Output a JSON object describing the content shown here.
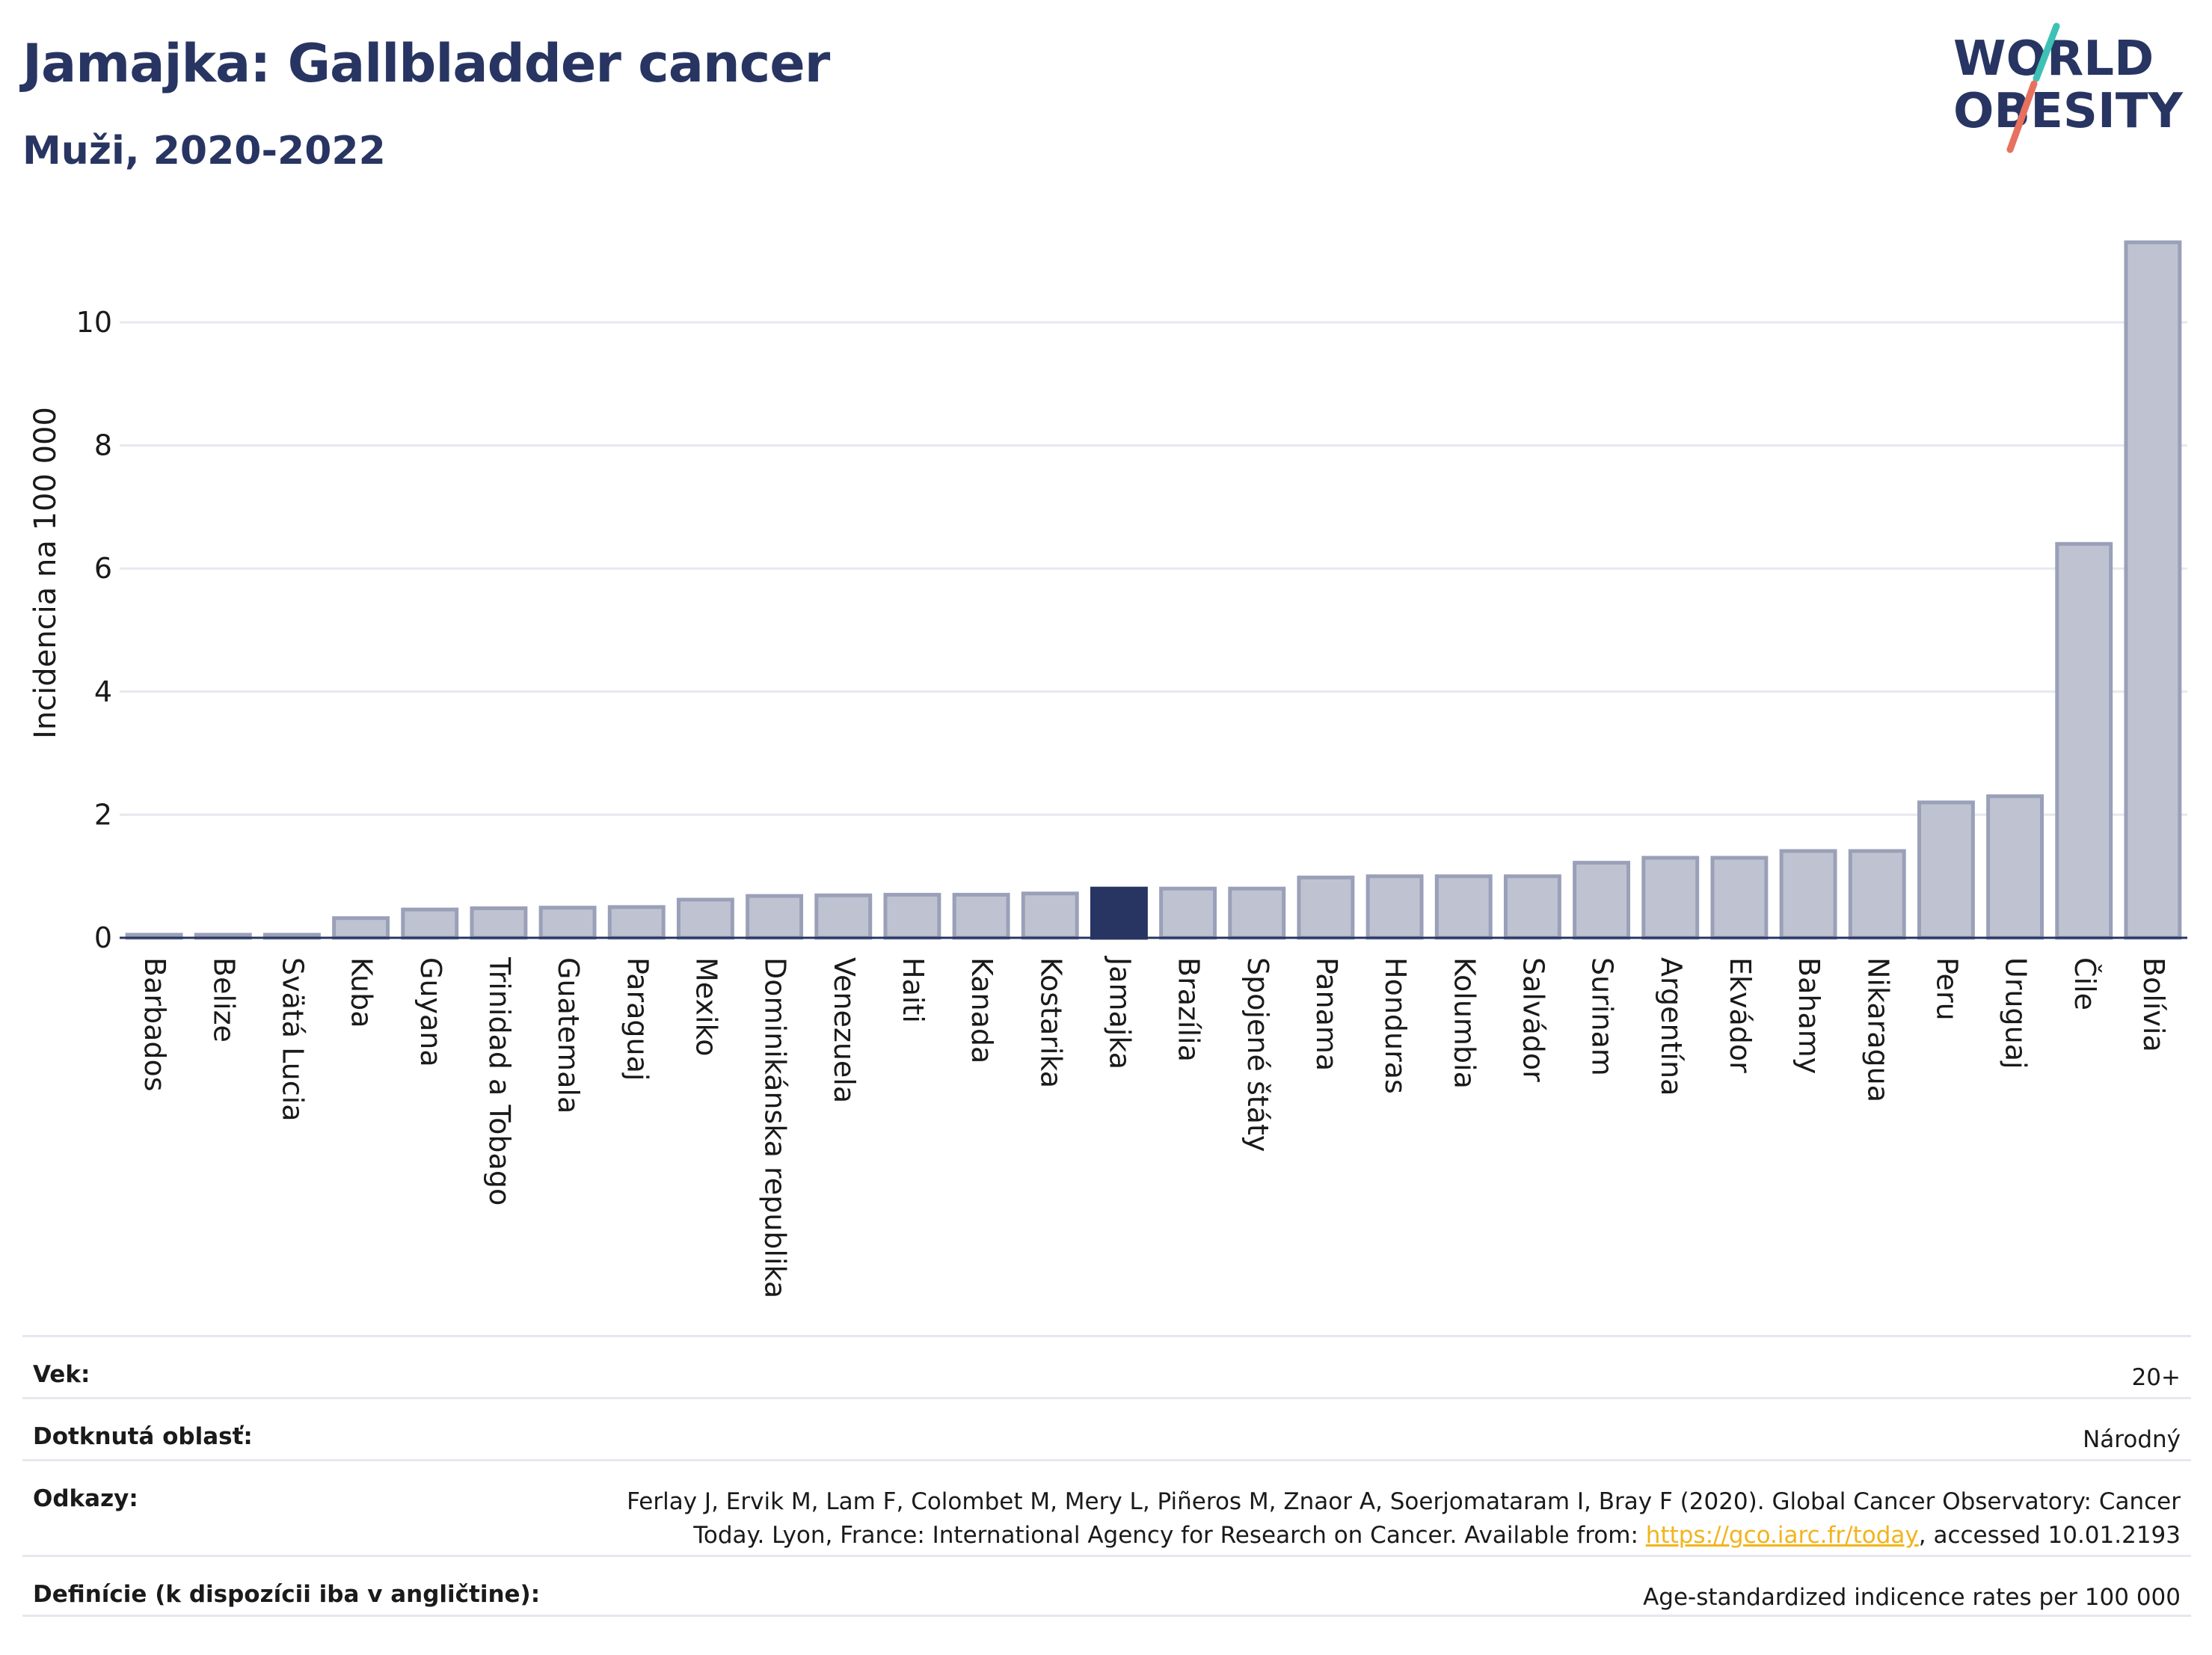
{
  "header": {
    "title": "Jamajka: Gallbladder cancer",
    "subtitle": "Muži, 2020-2022"
  },
  "logo": {
    "line1": "WORLD",
    "line2": "OBESITY",
    "colors": {
      "text": "#283562",
      "slash_top": "#3ec1b5",
      "slash_bottom": "#e8705e"
    }
  },
  "chart_data": {
    "type": "bar",
    "xlabel": "",
    "ylabel": "Incidencia na 100 000",
    "ylim": [
      0,
      11.3
    ],
    "yticks": [
      0,
      2,
      4,
      6,
      8,
      10
    ],
    "grid": true,
    "highlight": "Jamajka",
    "colors": {
      "bar": "#bfc3d1",
      "bar_edge": "#9aa0b8",
      "highlight": "#283562",
      "grid": "#e6e8ef",
      "axis": "#283562"
    },
    "categories": [
      "Barbados",
      "Belize",
      "Svätá Lucia",
      "Kuba",
      "Guyana",
      "Trinidad a Tobago",
      "Guatemala",
      "Paraguaj",
      "Mexiko",
      "Dominikánska republika",
      "Venezuela",
      "Haiti",
      "Kanada",
      "Kostarika",
      "Jamajka",
      "Brazília",
      "Spojené štáty",
      "Panama",
      "Honduras",
      "Kolumbia",
      "Salvádor",
      "Surinam",
      "Argentína",
      "Ekvádor",
      "Bahamy",
      "Nikaragua",
      "Peru",
      "Uruguaj",
      "Čile",
      "Bolívia"
    ],
    "values": [
      0.05,
      0.05,
      0.05,
      0.32,
      0.46,
      0.48,
      0.49,
      0.5,
      0.62,
      0.68,
      0.69,
      0.7,
      0.7,
      0.72,
      0.8,
      0.8,
      0.8,
      0.98,
      1.0,
      1.0,
      1.0,
      1.22,
      1.3,
      1.3,
      1.41,
      1.41,
      2.2,
      2.3,
      6.4,
      11.3
    ]
  },
  "meta": {
    "age_label": "Vek:",
    "age_value": "20+",
    "area_label": "Dotknutá oblasť:",
    "area_value": "Národný",
    "refs_label": "Odkazy:",
    "refs_line1": "Ferlay J, Ervik M, Lam F, Colombet M, Mery L, Piñeros M, Znaor A, Soerjomataram I, Bray F (2020). Global Cancer Observatory: Cancer",
    "refs_line2_pre": "Today. Lyon, France: International Agency for Research on Cancer. Available from: ",
    "refs_link": "https://gco.iarc.fr/today",
    "refs_line2_post": ", accessed 10.01.2193",
    "def_label": "Definície (k dispozícii iba v angličtine):",
    "def_value": "Age-standardized indicence rates per 100 000"
  }
}
